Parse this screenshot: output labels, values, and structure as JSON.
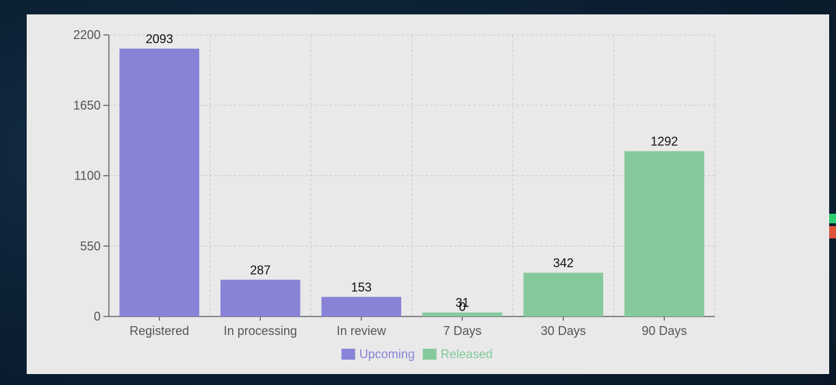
{
  "chart_data": {
    "type": "bar",
    "categories": [
      "Registered",
      "In processing",
      "In review",
      "7 Days",
      "30 Days",
      "90 Days"
    ],
    "series": [
      {
        "name": "Upcoming",
        "color": "#8983d7",
        "values": [
          2093,
          287,
          153,
          0,
          null,
          null
        ]
      },
      {
        "name": "Released",
        "color": "#85c99d",
        "values": [
          null,
          null,
          null,
          31,
          342,
          1292
        ]
      }
    ],
    "ylim": [
      0,
      2200
    ],
    "yticks": [
      0,
      550,
      1100,
      1650,
      2200
    ],
    "grid": true,
    "legend": "bottom-center",
    "title": "",
    "xlabel": "",
    "ylabel": ""
  }
}
